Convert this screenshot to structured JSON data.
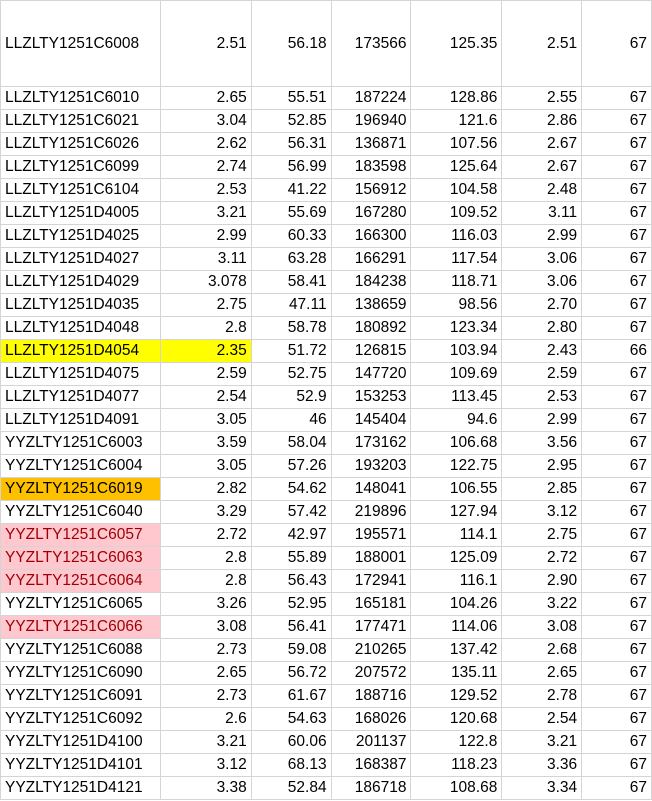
{
  "colors": {
    "yellow_highlight": "#ffff00",
    "orange_highlight": "#ffc000",
    "pink_highlight": "#ffc7ce",
    "pink_text": "#9c0006"
  },
  "rows": [
    {
      "id": "LLZLTY1251C6008",
      "a": "2.51",
      "b": "56.18",
      "c": "173566",
      "d": "125.35",
      "e": "2.51",
      "f": "67",
      "style": ""
    },
    {
      "id": "LLZLTY1251C6010",
      "a": "2.65",
      "b": "55.51",
      "c": "187224",
      "d": "128.86",
      "e": "2.55",
      "f": "67",
      "style": ""
    },
    {
      "id": "LLZLTY1251C6021",
      "a": "3.04",
      "b": "52.85",
      "c": "196940",
      "d": "121.6",
      "e": "2.86",
      "f": "67",
      "style": ""
    },
    {
      "id": "LLZLTY1251C6026",
      "a": "2.62",
      "b": "56.31",
      "c": "136871",
      "d": "107.56",
      "e": "2.67",
      "f": "67",
      "style": ""
    },
    {
      "id": "LLZLTY1251C6099",
      "a": "2.74",
      "b": "56.99",
      "c": "183598",
      "d": "125.64",
      "e": "2.67",
      "f": "67",
      "style": ""
    },
    {
      "id": "LLZLTY1251C6104",
      "a": "2.53",
      "b": "41.22",
      "c": "156912",
      "d": "104.58",
      "e": "2.48",
      "f": "67",
      "style": ""
    },
    {
      "id": "LLZLTY1251D4005",
      "a": "3.21",
      "b": "55.69",
      "c": "167280",
      "d": "109.52",
      "e": "3.11",
      "f": "67",
      "style": ""
    },
    {
      "id": "LLZLTY1251D4025",
      "a": "2.99",
      "b": "60.33",
      "c": "166300",
      "d": "116.03",
      "e": "2.99",
      "f": "67",
      "style": ""
    },
    {
      "id": "LLZLTY1251D4027",
      "a": "3.11",
      "b": "63.28",
      "c": "166291",
      "d": "117.54",
      "e": "3.06",
      "f": "67",
      "style": ""
    },
    {
      "id": "LLZLTY1251D4029",
      "a": "3.078",
      "b": "58.41",
      "c": "184238",
      "d": "118.71",
      "e": "3.06",
      "f": "67",
      "style": ""
    },
    {
      "id": "LLZLTY1251D4035",
      "a": "2.75",
      "b": "47.11",
      "c": "138659",
      "d": "98.56",
      "e": "2.70",
      "f": "67",
      "style": ""
    },
    {
      "id": "LLZLTY1251D4048",
      "a": "2.8",
      "b": "58.78",
      "c": "180892",
      "d": "123.34",
      "e": "2.80",
      "f": "67",
      "style": ""
    },
    {
      "id": "LLZLTY1251D4054",
      "a": "2.35",
      "b": "51.72",
      "c": "126815",
      "d": "103.94",
      "e": "2.43",
      "f": "66",
      "style": "yellow"
    },
    {
      "id": "LLZLTY1251D4075",
      "a": "2.59",
      "b": "52.75",
      "c": "147720",
      "d": "109.69",
      "e": "2.59",
      "f": "67",
      "style": ""
    },
    {
      "id": "LLZLTY1251D4077",
      "a": "2.54",
      "b": "52.9",
      "c": "153253",
      "d": "113.45",
      "e": "2.53",
      "f": "67",
      "style": ""
    },
    {
      "id": "LLZLTY1251D4091",
      "a": "3.05",
      "b": "46",
      "c": "145404",
      "d": "94.6",
      "e": "2.99",
      "f": "67",
      "style": ""
    },
    {
      "id": "YYZLTY1251C6003",
      "a": "3.59",
      "b": "58.04",
      "c": "173162",
      "d": "106.68",
      "e": "3.56",
      "f": "67",
      "style": ""
    },
    {
      "id": "YYZLTY1251C6004",
      "a": "3.05",
      "b": "57.26",
      "c": "193203",
      "d": "122.75",
      "e": "2.95",
      "f": "67",
      "style": ""
    },
    {
      "id": "YYZLTY1251C6019",
      "a": "2.82",
      "b": "54.62",
      "c": "148041",
      "d": "106.55",
      "e": "2.85",
      "f": "67",
      "style": "orange"
    },
    {
      "id": "YYZLTY1251C6040",
      "a": "3.29",
      "b": "57.42",
      "c": "219896",
      "d": "127.94",
      "e": "3.12",
      "f": "67",
      "style": ""
    },
    {
      "id": "YYZLTY1251C6057",
      "a": "2.72",
      "b": "42.97",
      "c": "195571",
      "d": "114.1",
      "e": "2.75",
      "f": "67",
      "style": "pink"
    },
    {
      "id": "YYZLTY1251C6063",
      "a": "2.8",
      "b": "55.89",
      "c": "188001",
      "d": "125.09",
      "e": "2.72",
      "f": "67",
      "style": "pink"
    },
    {
      "id": "YYZLTY1251C6064",
      "a": "2.8",
      "b": "56.43",
      "c": "172941",
      "d": "116.1",
      "e": "2.90",
      "f": "67",
      "style": "pink"
    },
    {
      "id": "YYZLTY1251C6065",
      "a": "3.26",
      "b": "52.95",
      "c": "165181",
      "d": "104.26",
      "e": "3.22",
      "f": "67",
      "style": ""
    },
    {
      "id": "YYZLTY1251C6066",
      "a": "3.08",
      "b": "56.41",
      "c": "177471",
      "d": "114.06",
      "e": "3.08",
      "f": "67",
      "style": "pink"
    },
    {
      "id": "YYZLTY1251C6088",
      "a": "2.73",
      "b": "59.08",
      "c": "210265",
      "d": "137.42",
      "e": "2.68",
      "f": "67",
      "style": ""
    },
    {
      "id": "YYZLTY1251C6090",
      "a": "2.65",
      "b": "56.72",
      "c": "207572",
      "d": "135.11",
      "e": "2.65",
      "f": "67",
      "style": ""
    },
    {
      "id": "YYZLTY1251C6091",
      "a": "2.73",
      "b": "61.67",
      "c": "188716",
      "d": "129.52",
      "e": "2.78",
      "f": "67",
      "style": ""
    },
    {
      "id": "YYZLTY1251C6092",
      "a": "2.6",
      "b": "54.63",
      "c": "168026",
      "d": "120.68",
      "e": "2.54",
      "f": "67",
      "style": ""
    },
    {
      "id": "YYZLTY1251D4100",
      "a": "3.21",
      "b": "60.06",
      "c": "201137",
      "d": "122.8",
      "e": "3.21",
      "f": "67",
      "style": ""
    },
    {
      "id": "YYZLTY1251D4101",
      "a": "3.12",
      "b": "68.13",
      "c": "168387",
      "d": "118.23",
      "e": "3.36",
      "f": "67",
      "style": ""
    },
    {
      "id": "YYZLTY1251D4121",
      "a": "3.38",
      "b": "52.84",
      "c": "186718",
      "d": "108.68",
      "e": "3.34",
      "f": "67",
      "style": ""
    }
  ]
}
